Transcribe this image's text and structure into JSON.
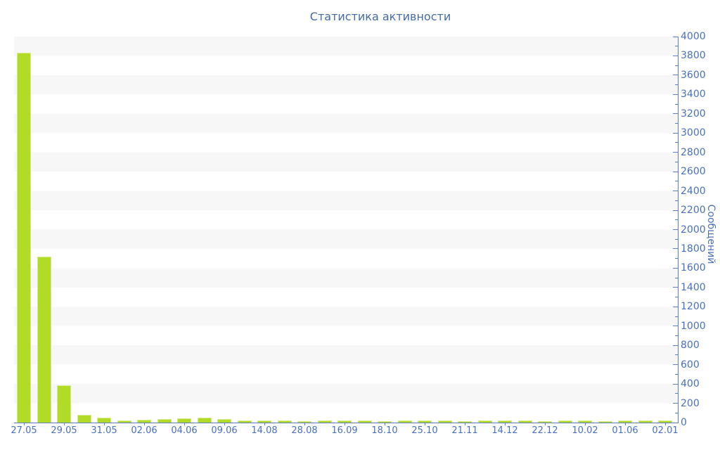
{
  "title": "Статистика активности",
  "colors": {
    "title_text": "#456ba6",
    "tick_label": "#4a70bc",
    "axis_line": "#5e80c0",
    "bar_fill": "#b2db28",
    "bar_border": "#d5eb8e",
    "stripe_gray": "#f7f7f7",
    "stripe_white": "#ffffff",
    "page_background": "#ffffff"
  },
  "chart_data": {
    "type": "bar",
    "title": "Статистика активности",
    "xlabel": "",
    "ylabel": "Сообщений",
    "ylim": [
      0,
      4000
    ],
    "y_major_step": 200,
    "y_minor_step": 100,
    "legend": "none",
    "grid": "alternating horizontal bands (gray/white) every 200 units",
    "y_axis_side": "right",
    "categories": [
      "27.05",
      "",
      "29.05",
      "",
      "31.05",
      "",
      "02.06",
      "",
      "04.06",
      "",
      "09.06",
      "",
      "14.08",
      "",
      "28.08",
      "",
      "16.09",
      "",
      "18.10",
      "",
      "25.10",
      "",
      "21.11",
      "",
      "14.12",
      "",
      "22.12",
      "",
      "10.02",
      "",
      "01.06",
      "",
      "02.01"
    ],
    "values": [
      3835,
      1720,
      385,
      80,
      50,
      25,
      30,
      33,
      44,
      50,
      38,
      25,
      20,
      23,
      17,
      22,
      19,
      24,
      17,
      21,
      24,
      19,
      17,
      22,
      19,
      23,
      17,
      19,
      22,
      17,
      19,
      21,
      24
    ],
    "x_tick_labels": [
      "27.05",
      "29.05",
      "31.05",
      "02.06",
      "04.06",
      "09.06",
      "14.08",
      "28.08",
      "16.09",
      "18.10",
      "25.10",
      "21.11",
      "14.12",
      "22.12",
      "10.02",
      "01.06",
      "02.01"
    ],
    "y_tick_labels": [
      "0",
      "200",
      "400",
      "600",
      "800",
      "1000",
      "1200",
      "1400",
      "1600",
      "1800",
      "2000",
      "2200",
      "2400",
      "2600",
      "2800",
      "3000",
      "3200",
      "3400",
      "3600",
      "3800",
      "4000"
    ]
  }
}
